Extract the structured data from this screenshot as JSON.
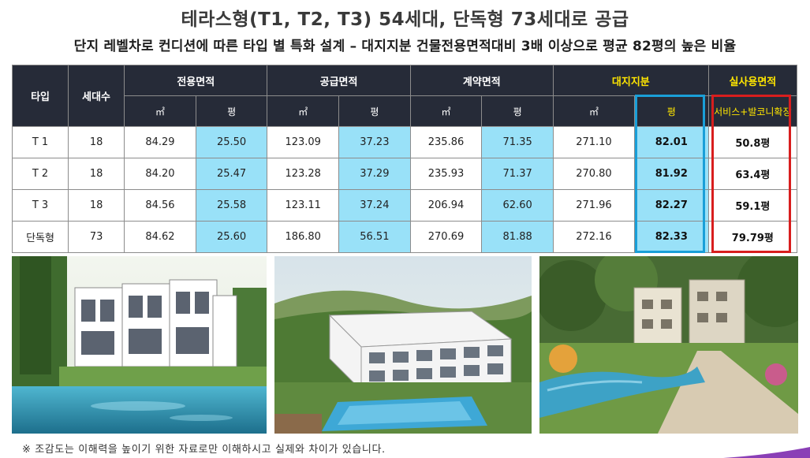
{
  "header": {
    "title": "테라스형(T1, T2, T3) 54세대, 단독형 73세대로 공급",
    "subtitle": "단지 레벨차로 컨디션에 따른 타입 별 특화 설계 – 대지지분 건물전용면적대비 3배 이상으로 평균 82평의 높은 비율"
  },
  "table": {
    "headers": {
      "type": "타입",
      "households": "세대수",
      "exclusive_area": "전용면적",
      "supply_area": "공급면적",
      "contract_area": "계약면적",
      "land_share": "대지지분",
      "actual_area": "실사용면적",
      "unit_m2": "㎡",
      "unit_pyeong": "평",
      "actual_area_sub": "서비스+발코니확장"
    },
    "rows": [
      {
        "type": "T 1",
        "households": "18",
        "excl_m2": "84.29",
        "excl_py": "25.50",
        "supply_m2": "123.09",
        "supply_py": "37.23",
        "contract_m2": "235.86",
        "contract_py": "71.35",
        "land_m2": "271.10",
        "land_py": "82.01",
        "actual": "50.8평"
      },
      {
        "type": "T 2",
        "households": "18",
        "excl_m2": "84.20",
        "excl_py": "25.47",
        "supply_m2": "123.28",
        "supply_py": "37.29",
        "contract_m2": "235.93",
        "contract_py": "71.37",
        "land_m2": "270.80",
        "land_py": "81.92",
        "actual": "63.4평"
      },
      {
        "type": "T 3",
        "households": "18",
        "excl_m2": "84.56",
        "excl_py": "25.58",
        "supply_m2": "123.11",
        "supply_py": "37.24",
        "contract_m2": "206.94",
        "contract_py": "62.60",
        "land_m2": "271.96",
        "land_py": "82.27",
        "actual": "59.1평"
      },
      {
        "type": "단독형",
        "households": "73",
        "excl_m2": "84.62",
        "excl_py": "25.60",
        "supply_m2": "186.80",
        "supply_py": "56.51",
        "contract_m2": "270.69",
        "contract_py": "81.88",
        "land_m2": "272.16",
        "land_py": "82.33",
        "actual": "79.79평"
      }
    ]
  },
  "footnote": "※ 조감도는 이해력을 높이기 위한 자료로만 이해하시고 실제와 차이가 있습니다.",
  "colors": {
    "header_bg": "#262b38",
    "highlight_text": "#ffe600",
    "pyeong_cell_bg": "#99e1f8",
    "blue_box": "#1a9fd8",
    "red_box": "#d81e1e"
  }
}
